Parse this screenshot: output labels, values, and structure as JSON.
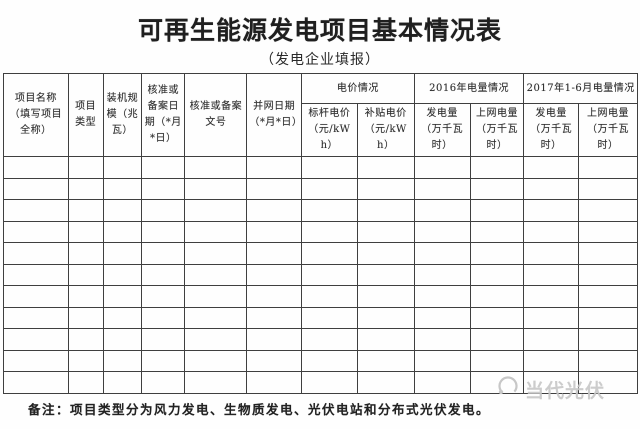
{
  "page": {
    "title": "可再生能源发电项目基本情况表",
    "subtitle": "（发电企业填报）"
  },
  "table": {
    "columns": [
      {
        "label": "项目名称（填写项目全称）"
      },
      {
        "label": "项目类型"
      },
      {
        "label": "装机规模（兆瓦）"
      },
      {
        "label": "核准或备案日期（*月*日）"
      },
      {
        "label": "核准或备案文号"
      },
      {
        "label": "并网日期（*月*日）"
      }
    ],
    "groups": [
      {
        "label": "电价情况",
        "children": [
          "标杆电价（元/kWh）",
          "补贴电价（元/kWh）"
        ]
      },
      {
        "label": "2016年电量情况",
        "children": [
          "发电量（万千瓦时）",
          "上网电量（万千瓦时）"
        ]
      },
      {
        "label": "2017年1-6月电量情况",
        "children": [
          "发电量（万千瓦时）",
          "上网电量（万千瓦时）"
        ]
      }
    ],
    "empty_row_count": 11,
    "column_count": 12
  },
  "note": {
    "prefix": "备注：",
    "text": "项目类型分为风力发电、生物质发电、光伏电站和分布式光伏发电。"
  },
  "watermark": {
    "text": "当代光伏",
    "icon": "crescent-logo-icon"
  },
  "colors": {
    "border": "#3f3f3f",
    "text": "#2d2d2d",
    "watermark": "#c7c7c7",
    "background": "#fefefe"
  }
}
